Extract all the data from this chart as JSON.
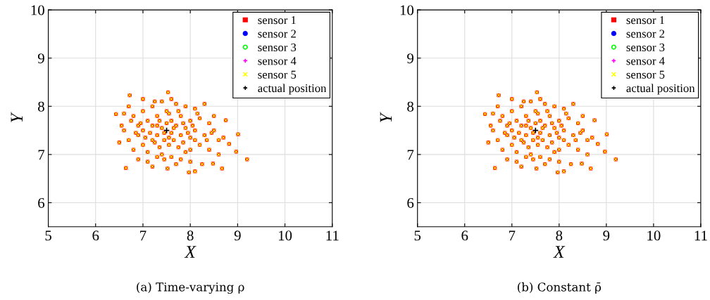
{
  "chart_data": [
    {
      "type": "scatter",
      "xlabel": "X",
      "ylabel": "Y",
      "annotations": [
        "(a) Time-varying ρ"
      ],
      "xlim": [
        5,
        11
      ],
      "ylim": [
        5.5,
        10
      ],
      "xticks": [
        5,
        6,
        7,
        8,
        9,
        10,
        11
      ],
      "yticks": [
        6,
        7,
        8,
        9,
        10
      ],
      "grid": true,
      "legend": "top right",
      "series": [
        {
          "name": "sensor 1",
          "color": "#ff0000",
          "marker": "square",
          "x": [
            7.0,
            7.2,
            7.4,
            7.7,
            7.9,
            8.1,
            8.3,
            6.8,
            6.9,
            7.1,
            7.3,
            7.5,
            7.6,
            7.8,
            8.0,
            8.2,
            8.4,
            8.5,
            6.6,
            6.7,
            6.9,
            7.0,
            7.2,
            7.3,
            7.4,
            7.6,
            7.7,
            7.8,
            7.9,
            8.0,
            8.1,
            8.3,
            8.6,
            6.5,
            6.8,
            7.0,
            7.1,
            7.2,
            7.35,
            7.45,
            7.55,
            7.65,
            7.75,
            7.85,
            8.0,
            8.2,
            8.4,
            8.6,
            6.9,
            7.1,
            7.3,
            7.45,
            7.6,
            7.8,
            8.0,
            8.25,
            7.2,
            7.7,
            7.3,
            7.5,
            7.15,
            7.25,
            7.55,
            7.65,
            7.35,
            7.45,
            7.85,
            7.95,
            8.05,
            7.05,
            6.95,
            6.75,
            6.6,
            7.55,
            7.75,
            8.15,
            8.35,
            8.45,
            6.85,
            7.4,
            7.9,
            8.1,
            6.55,
            8.7,
            7.25,
            7.6,
            6.7,
            8.5,
            7.0,
            6.72,
            7.53,
            6.64,
            9.2,
            9.01,
            8.75,
            8.67,
            7.97,
            8.1,
            6.43,
            8.97,
            8.82,
            8.48,
            7.52
          ],
          "values": [
            7.9,
            8.0,
            8.1,
            8.05,
            8.0,
            7.95,
            8.05,
            7.8,
            7.6,
            7.7,
            7.8,
            7.9,
            7.7,
            7.8,
            7.7,
            7.75,
            7.65,
            7.5,
            7.5,
            7.3,
            7.4,
            7.5,
            7.6,
            7.4,
            7.55,
            7.45,
            7.6,
            7.4,
            7.55,
            7.35,
            7.5,
            7.4,
            7.3,
            7.25,
            7.1,
            7.2,
            7.05,
            7.3,
            7.15,
            7.3,
            7.2,
            7.3,
            7.15,
            7.25,
            7.1,
            7.2,
            7.1,
            7.0,
            6.9,
            6.85,
            6.95,
            6.9,
            6.95,
            6.9,
            6.85,
            6.8,
            6.75,
            6.8,
            7.6,
            7.65,
            7.45,
            7.25,
            7.35,
            7.55,
            7.7,
            7.45,
            7.65,
            7.45,
            7.6,
            7.35,
            7.65,
            7.7,
            7.85,
            7.85,
            7.9,
            7.85,
            7.3,
            7.45,
            7.45,
            7.0,
            7.05,
            7.3,
            7.6,
            7.35,
            8.1,
            8.15,
            8.0,
            7.8,
            8.15,
            8.23,
            8.29,
            6.72,
            6.9,
            7.42,
            7.71,
            6.71,
            6.63,
            6.65,
            7.84,
            7.06,
            7.22,
            6.81,
            6.71
          ]
        },
        {
          "name": "sensor 2",
          "color": "#0000ff",
          "marker": "circle"
        },
        {
          "name": "sensor 3",
          "color": "#00ff00",
          "marker": "open circle"
        },
        {
          "name": "sensor 4",
          "color": "#ff00ff",
          "marker": "plus"
        },
        {
          "name": "sensor 5",
          "color": "#ffff00",
          "marker": "cross",
          "x": [
            7.0,
            7.2,
            7.4,
            7.7,
            7.9,
            8.1,
            8.3,
            6.8,
            6.9,
            7.1,
            7.3,
            7.5,
            7.6,
            7.8,
            8.0,
            8.2,
            8.4,
            8.5,
            6.6,
            6.7,
            6.9,
            7.0,
            7.2,
            7.3,
            7.4,
            7.6,
            7.7,
            7.8,
            7.9,
            8.0,
            8.1,
            8.3,
            8.6,
            6.5,
            6.8,
            7.0,
            7.1,
            7.2,
            7.35,
            7.45,
            7.55,
            7.65,
            7.75,
            7.85,
            8.0,
            8.2,
            8.4,
            8.6,
            6.9,
            7.1,
            7.3,
            7.45,
            7.6,
            7.8,
            8.0,
            8.25,
            7.2,
            7.7,
            7.3,
            7.5,
            7.15,
            7.25,
            7.55,
            7.65,
            7.35,
            7.45,
            7.85,
            7.95,
            8.05,
            7.05,
            6.95,
            6.75,
            6.6,
            7.55,
            7.75,
            8.15,
            8.35,
            8.45,
            6.85,
            7.4,
            7.9,
            8.1,
            6.55,
            8.7,
            7.25,
            7.6,
            6.7,
            8.5,
            7.0,
            6.72,
            7.53,
            6.64,
            9.2,
            9.01,
            8.75,
            8.67,
            7.97,
            8.1,
            6.43,
            8.97,
            8.82,
            8.48,
            7.52
          ],
          "values": [
            7.9,
            8.0,
            8.1,
            8.05,
            8.0,
            7.95,
            8.05,
            7.8,
            7.6,
            7.7,
            7.8,
            7.9,
            7.7,
            7.8,
            7.7,
            7.75,
            7.65,
            7.5,
            7.5,
            7.3,
            7.4,
            7.5,
            7.6,
            7.4,
            7.55,
            7.45,
            7.6,
            7.4,
            7.55,
            7.35,
            7.5,
            7.4,
            7.3,
            7.25,
            7.1,
            7.2,
            7.05,
            7.3,
            7.15,
            7.3,
            7.2,
            7.3,
            7.15,
            7.25,
            7.1,
            7.2,
            7.1,
            7.0,
            6.9,
            6.85,
            6.95,
            6.9,
            6.95,
            6.9,
            6.85,
            6.8,
            6.75,
            6.8,
            7.6,
            7.65,
            7.45,
            7.25,
            7.35,
            7.55,
            7.7,
            7.45,
            7.65,
            7.45,
            7.6,
            7.35,
            7.65,
            7.7,
            7.85,
            7.85,
            7.9,
            7.85,
            7.3,
            7.45,
            7.45,
            7.0,
            7.05,
            7.3,
            7.6,
            7.35,
            8.1,
            8.15,
            8.0,
            7.8,
            8.15,
            8.23,
            8.29,
            6.72,
            6.9,
            7.42,
            7.71,
            6.71,
            6.63,
            6.65,
            7.84,
            7.06,
            7.22,
            6.81,
            6.71
          ]
        },
        {
          "name": "actual position",
          "color": "#000000",
          "marker": "plus",
          "x": [
            7.5
          ],
          "values": [
            7.5
          ]
        }
      ]
    },
    {
      "type": "scatter",
      "xlabel": "X",
      "ylabel": "Y",
      "annotations": [
        "(b) Constant ρ̄"
      ],
      "xlim": [
        5,
        11
      ],
      "ylim": [
        5.5,
        10
      ],
      "xticks": [
        5,
        6,
        7,
        8,
        9,
        10,
        11
      ],
      "yticks": [
        6,
        7,
        8,
        9,
        10
      ],
      "grid": true,
      "legend": "top right",
      "series": [
        {
          "name": "sensor 1",
          "color": "#ff0000",
          "marker": "square",
          "x": [
            7.0,
            7.2,
            7.4,
            7.7,
            7.9,
            8.1,
            8.3,
            6.8,
            6.9,
            7.1,
            7.3,
            7.5,
            7.6,
            7.8,
            8.0,
            8.2,
            8.4,
            8.5,
            6.6,
            6.7,
            6.9,
            7.0,
            7.2,
            7.3,
            7.4,
            7.6,
            7.7,
            7.8,
            7.9,
            8.0,
            8.1,
            8.3,
            8.6,
            6.5,
            6.8,
            7.0,
            7.1,
            7.2,
            7.35,
            7.45,
            7.55,
            7.65,
            7.75,
            7.85,
            8.0,
            8.2,
            8.4,
            8.6,
            6.9,
            7.1,
            7.3,
            7.45,
            7.6,
            7.8,
            8.0,
            8.25,
            7.2,
            7.7,
            7.3,
            7.5,
            7.15,
            7.25,
            7.55,
            7.65,
            7.35,
            7.45,
            7.85,
            7.95,
            8.05,
            7.05,
            6.95,
            6.75,
            6.6,
            7.55,
            7.75,
            8.15,
            8.35,
            8.45,
            6.85,
            7.4,
            7.9,
            8.1,
            6.55,
            8.7,
            7.25,
            7.6,
            6.7,
            8.5,
            7.0,
            6.72,
            7.53,
            6.64,
            9.2,
            9.01,
            8.75,
            8.67,
            7.97,
            8.1,
            6.43,
            8.97,
            8.82,
            8.48,
            7.52
          ],
          "values": [
            7.9,
            8.0,
            8.1,
            8.05,
            8.0,
            7.95,
            8.05,
            7.8,
            7.6,
            7.7,
            7.8,
            7.9,
            7.7,
            7.8,
            7.7,
            7.75,
            7.65,
            7.5,
            7.5,
            7.3,
            7.4,
            7.5,
            7.6,
            7.4,
            7.55,
            7.45,
            7.6,
            7.4,
            7.55,
            7.35,
            7.5,
            7.4,
            7.3,
            7.25,
            7.1,
            7.2,
            7.05,
            7.3,
            7.15,
            7.3,
            7.2,
            7.3,
            7.15,
            7.25,
            7.1,
            7.2,
            7.1,
            7.0,
            6.9,
            6.85,
            6.95,
            6.9,
            6.95,
            6.9,
            6.85,
            6.8,
            6.75,
            6.8,
            7.6,
            7.65,
            7.45,
            7.25,
            7.35,
            7.55,
            7.7,
            7.45,
            7.65,
            7.45,
            7.6,
            7.35,
            7.65,
            7.7,
            7.85,
            7.85,
            7.9,
            7.85,
            7.3,
            7.45,
            7.45,
            7.0,
            7.05,
            7.3,
            7.6,
            7.35,
            8.1,
            8.15,
            8.0,
            7.8,
            8.15,
            8.23,
            8.29,
            6.72,
            6.9,
            7.42,
            7.71,
            6.71,
            6.63,
            6.65,
            7.84,
            7.06,
            7.22,
            6.81,
            6.71
          ]
        },
        {
          "name": "sensor 2",
          "color": "#0000ff",
          "marker": "circle"
        },
        {
          "name": "sensor 3",
          "color": "#00ff00",
          "marker": "open circle"
        },
        {
          "name": "sensor 4",
          "color": "#ff00ff",
          "marker": "plus"
        },
        {
          "name": "sensor 5",
          "color": "#ffff00",
          "marker": "cross",
          "x": [
            7.0,
            7.2,
            7.4,
            7.7,
            7.9,
            8.1,
            8.3,
            6.8,
            6.9,
            7.1,
            7.3,
            7.5,
            7.6,
            7.8,
            8.0,
            8.2,
            8.4,
            8.5,
            6.6,
            6.7,
            6.9,
            7.0,
            7.2,
            7.3,
            7.4,
            7.6,
            7.7,
            7.8,
            7.9,
            8.0,
            8.1,
            8.3,
            8.6,
            6.5,
            6.8,
            7.0,
            7.1,
            7.2,
            7.35,
            7.45,
            7.55,
            7.65,
            7.75,
            7.85,
            8.0,
            8.2,
            8.4,
            8.6,
            6.9,
            7.1,
            7.3,
            7.45,
            7.6,
            7.8,
            8.0,
            8.25,
            7.2,
            7.7,
            7.3,
            7.5,
            7.15,
            7.25,
            7.55,
            7.65,
            7.35,
            7.45,
            7.85,
            7.95,
            8.05,
            7.05,
            6.95,
            6.75,
            6.6,
            7.55,
            7.75,
            8.15,
            8.35,
            8.45,
            6.85,
            7.4,
            7.9,
            8.1,
            6.55,
            8.7,
            7.25,
            7.6,
            6.7,
            8.5,
            7.0,
            6.72,
            7.53,
            6.64,
            9.2,
            9.01,
            8.75,
            8.67,
            7.97,
            8.1,
            6.43,
            8.97,
            8.82,
            8.48,
            7.52
          ],
          "values": [
            7.9,
            8.0,
            8.1,
            8.05,
            8.0,
            7.95,
            8.05,
            7.8,
            7.6,
            7.7,
            7.8,
            7.9,
            7.7,
            7.8,
            7.7,
            7.75,
            7.65,
            7.5,
            7.5,
            7.3,
            7.4,
            7.5,
            7.6,
            7.4,
            7.55,
            7.45,
            7.6,
            7.4,
            7.55,
            7.35,
            7.5,
            7.4,
            7.3,
            7.25,
            7.1,
            7.2,
            7.05,
            7.3,
            7.15,
            7.3,
            7.2,
            7.3,
            7.15,
            7.25,
            7.1,
            7.2,
            7.1,
            7.0,
            6.9,
            6.85,
            6.95,
            6.9,
            6.95,
            6.9,
            6.85,
            6.8,
            6.75,
            6.8,
            7.6,
            7.65,
            7.45,
            7.25,
            7.35,
            7.55,
            7.7,
            7.45,
            7.65,
            7.45,
            7.6,
            7.35,
            7.65,
            7.7,
            7.85,
            7.85,
            7.9,
            7.85,
            7.3,
            7.45,
            7.45,
            7.0,
            7.05,
            7.3,
            7.6,
            7.35,
            8.1,
            8.15,
            8.0,
            7.8,
            8.15,
            8.23,
            8.29,
            6.72,
            6.9,
            7.42,
            7.71,
            6.71,
            6.63,
            6.65,
            7.84,
            7.06,
            7.22,
            6.81,
            6.71
          ]
        },
        {
          "name": "actual position",
          "color": "#000000",
          "marker": "plus",
          "x": [
            7.5
          ],
          "values": [
            7.5
          ]
        }
      ]
    }
  ]
}
